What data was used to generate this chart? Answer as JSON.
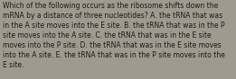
{
  "text": "Which of the following occurs as the ribosome shifts down the\nmRNA by a distance of three nucleotides? A. the tRNA that was\nin the A site moves into the E site. B. the tRNA that was in the P\nsite moves into the A site. C. the tRNA that was in the E site\nmoves into the P site. D. the tRNA that was in the E site moves\ninto the A site. E. the tRNA that was in the P site moves into the\nE site.",
  "background_color": "#a09a8e",
  "text_color": "#1a1a1a",
  "font_size": 5.5,
  "fig_width": 2.61,
  "fig_height": 0.88,
  "dpi": 100
}
